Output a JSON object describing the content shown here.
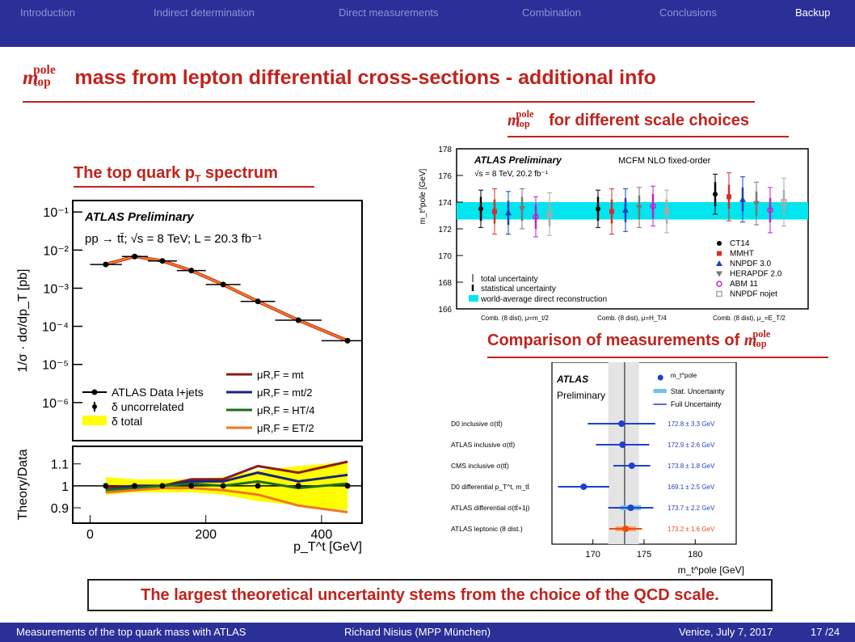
{
  "nav": {
    "items": [
      "Introduction",
      "Indirect determination",
      "Direct measurements",
      "Combination",
      "Conclusions",
      "Backup"
    ],
    "active": "Backup"
  },
  "title": {
    "rest": " mass from lepton differential cross-sections - additional info"
  },
  "symbol": {
    "m": "m",
    "sup": "pole",
    "sub": "top"
  },
  "sections": {
    "spectrum": "The top quark p",
    "spectrum_sub": "T",
    "spectrum_end": " spectrum",
    "scale": " for different scale choices",
    "comparison": "Comparison of measurements of "
  },
  "conclusion": "The largest theoretical uncertainty stems from the choice of the QCD scale.",
  "footer": {
    "left": "Measurements of the top quark mass with ATLAS",
    "center": "Richard Nisius  (MPP München)",
    "right": "Venice, July 7, 2017",
    "page": "17 /24"
  },
  "colors": {
    "header": "#2b2f98",
    "accent": "#c0231d"
  },
  "chart_data": [
    {
      "type": "line",
      "title": "The top quark pT spectrum",
      "xlabel": "p_T^t [GeV]",
      "ylabel": "1/σ · dσ/dp_T [pb]",
      "yscale": "log",
      "ylim": [
        1e-07,
        0.2
      ],
      "xlim": [
        -30,
        470
      ],
      "x_ticks": [
        "0",
        "200",
        "400"
      ],
      "y_ticks": [
        "10⁻¹",
        "10⁻²",
        "10⁻³",
        "10⁻⁴",
        "10⁻⁵",
        "10⁻⁶"
      ],
      "annotations": [
        "ATLAS Preliminary",
        "pp → tt̄; √s = 8 TeV; L = 20.3 fb⁻¹"
      ],
      "legend": [
        "ATLAS Data l+jets",
        "δ uncorrelated",
        "δ total",
        "μR,F = mt",
        "μR,F = mt/2",
        "μR,F = HT/4",
        "μR,F = ET/2"
      ],
      "bins": [
        [
          0,
          55
        ],
        [
          55,
          100
        ],
        [
          100,
          150
        ],
        [
          150,
          200
        ],
        [
          200,
          260
        ],
        [
          260,
          320
        ],
        [
          320,
          400
        ],
        [
          400,
          480
        ]
      ],
      "x": [
        27,
        77,
        125,
        175,
        230,
        290,
        360,
        445
      ],
      "values": [
        0.0042,
        0.0068,
        0.0052,
        0.0029,
        0.00125,
        0.00045,
        0.000145,
        4.2e-05
      ],
      "ratio": {
        "ylabel": "Theory/Data",
        "ylim": [
          0.83,
          1.18
        ],
        "y_ticks": [
          "1.1",
          "1",
          "0.9"
        ],
        "series": [
          {
            "name": "μR,F = mt",
            "color": "#8b1a1a",
            "values": [
              0.99,
              1.0,
              1.0,
              1.03,
              1.03,
              1.09,
              1.06,
              1.11
            ]
          },
          {
            "name": "μR,F = mt/2",
            "color": "#1a237e",
            "values": [
              0.98,
              1.0,
              1.0,
              1.02,
              1.02,
              1.06,
              1.02,
              1.05
            ]
          },
          {
            "name": "μR,F = HT/4",
            "color": "#1b6e1b",
            "values": [
              0.98,
              0.99,
              1.0,
              1.01,
              1.0,
              1.02,
              0.99,
              1.01
            ]
          },
          {
            "name": "μR,F = ET/2",
            "color": "#f07820",
            "values": [
              0.97,
              0.98,
              0.99,
              0.99,
              0.98,
              0.96,
              0.91,
              0.88
            ]
          }
        ],
        "band_lo": [
          0.96,
          0.97,
          0.97,
          0.97,
          0.96,
          0.93,
          0.91,
          0.89
        ],
        "band_hi": [
          1.04,
          1.03,
          1.03,
          1.03,
          1.04,
          1.07,
          1.09,
          1.11
        ]
      }
    },
    {
      "type": "scatter",
      "ylabel": "m_t^pole [GeV]",
      "ylim": [
        166,
        178
      ],
      "y_ticks": [
        "166",
        "168",
        "170",
        "172",
        "174",
        "176",
        "178"
      ],
      "annotations": [
        "ATLAS Preliminary",
        "√s = 8 TeV, 20.2 fb⁻¹",
        "MCFM NLO fixed-order"
      ],
      "groups": [
        "Comb. (8 dist), μ=m_t/2",
        "Comb. (8 dist), μ=H_T/4",
        "Comb. (8 dist), μ_=E_T/2"
      ],
      "band": {
        "lo": 172.7,
        "hi": 174.0,
        "label": "world-average direct reconstruction",
        "color": "#00e5ee"
      },
      "legend_left": [
        "total uncertainty",
        "statistical uncertainty",
        "world-average direct reconstruction"
      ],
      "series": [
        {
          "name": "CT14",
          "color": "#000000",
          "marker": "circle",
          "values": [
            173.5,
            173.5,
            174.6
          ],
          "tot": [
            1.4,
            1.4,
            1.5
          ],
          "stat": [
            0.9,
            0.9,
            0.9
          ]
        },
        {
          "name": "MMHT",
          "color": "#d32f2f",
          "marker": "square",
          "values": [
            173.3,
            173.3,
            174.4
          ],
          "tot": [
            1.7,
            1.7,
            1.8
          ],
          "stat": [
            0.9,
            0.9,
            0.9
          ]
        },
        {
          "name": "NNPDF 3.0",
          "color": "#1a3fb8",
          "marker": "triangle-up",
          "values": [
            173.2,
            173.4,
            174.2
          ],
          "tot": [
            1.6,
            1.6,
            1.7
          ],
          "stat": [
            0.9,
            0.9,
            0.9
          ]
        },
        {
          "name": "HERAPDF 2.0",
          "color": "#777777",
          "marker": "triangle-down",
          "values": [
            173.5,
            173.6,
            173.9
          ],
          "tot": [
            1.5,
            1.5,
            1.6
          ],
          "stat": [
            0.9,
            0.9,
            0.9
          ]
        },
        {
          "name": "ABM 11",
          "color": "#c81fc8",
          "marker": "circle-open",
          "values": [
            172.9,
            173.7,
            173.4
          ],
          "tot": [
            1.5,
            1.5,
            1.7
          ],
          "stat": [
            0.9,
            0.9,
            0.9
          ]
        },
        {
          "name": "NNPDF nojet",
          "color": "#aaaaaa",
          "marker": "square-open",
          "values": [
            173.1,
            173.3,
            174.0
          ],
          "tot": [
            1.6,
            1.6,
            1.8
          ],
          "stat": [
            0.9,
            0.9,
            0.9
          ]
        }
      ]
    },
    {
      "type": "scatter",
      "xlabel": "m_t^pole [GeV]",
      "xlim": [
        166,
        184
      ],
      "x_ticks": [
        "170",
        "175",
        "180"
      ],
      "annotations": [
        "ATLAS",
        "Preliminary"
      ],
      "legend": [
        "m_t^pole",
        "Stat. Uncertainty",
        "Full Uncertainty"
      ],
      "reference_band": {
        "lo": 171.5,
        "hi": 174.5,
        "line": 173.1
      },
      "measurements": [
        {
          "label": "D0 inclusive σ(tt̄)",
          "value": 172.8,
          "err": 3.3,
          "text": "172.8 ± 3.3 GeV",
          "color": "#1f3fcf"
        },
        {
          "label": "ATLAS inclusive σ(tt̄)",
          "value": 172.9,
          "err": 2.6,
          "text": "172.9 ± 2.6 GeV",
          "color": "#1f3fcf"
        },
        {
          "label": "CMS inclusive σ(tt̄)",
          "value": 173.8,
          "err": 1.8,
          "text": "173.8 ± 1.8 GeV",
          "color": "#1f3fcf"
        },
        {
          "label": "D0 differential p_T^t, m_tt̄",
          "value": 169.1,
          "err": 2.5,
          "text": "169.1 ± 2.5 GeV",
          "color": "#1f3fcf"
        },
        {
          "label": "ATLAS differential σ(tt̄+1j)",
          "value": 173.7,
          "err": 2.2,
          "text": "173.7 ± 2.2 GeV",
          "color": "#1f3fcf"
        },
        {
          "label": "ATLAS leptonic (8 dist.)",
          "value": 173.2,
          "err": 1.6,
          "text": "173.2 ± 1.6 GeV",
          "color": "#f04a16"
        }
      ]
    }
  ]
}
